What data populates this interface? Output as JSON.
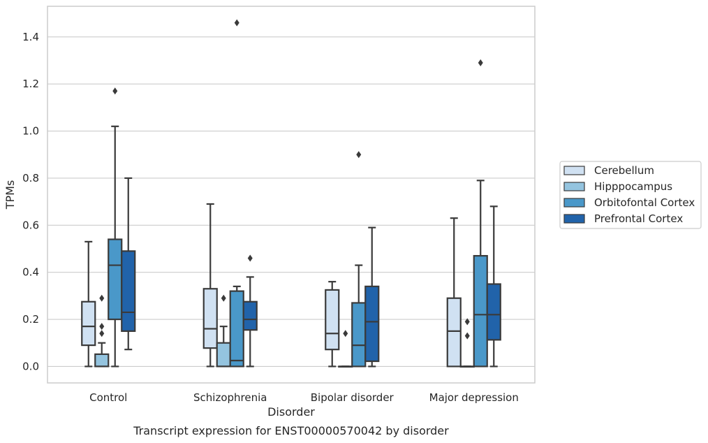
{
  "chart_data": {
    "type": "boxplot",
    "xlabel": "Disorder",
    "ylabel": "TPMs",
    "caption": "Transcript expression for ENST00000570042 by disorder",
    "ylim": [
      -0.07,
      1.53
    ],
    "yticks": [
      "0.0",
      "0.2",
      "0.4",
      "0.6",
      "0.8",
      "1.0",
      "1.2",
      "1.4"
    ],
    "yticks_values": [
      0,
      0.2,
      0.4,
      0.6,
      0.8,
      1.0,
      1.2,
      1.4
    ],
    "grid": "horizontal",
    "legend_position": "right",
    "categories": [
      "Control",
      "Schizophrenia",
      "Bipolar disorder",
      "Major depression"
    ],
    "series": [
      {
        "name": "Cerebellum",
        "color": "#d0e1f2",
        "boxes": [
          {
            "whisker_low": 0.0,
            "q1": 0.09,
            "median": 0.17,
            "q3": 0.275,
            "whisker_high": 0.53,
            "outliers": []
          },
          {
            "whisker_low": 0.0,
            "q1": 0.078,
            "median": 0.16,
            "q3": 0.33,
            "whisker_high": 0.69,
            "outliers": []
          },
          {
            "whisker_low": 0.0,
            "q1": 0.072,
            "median": 0.14,
            "q3": 0.325,
            "whisker_high": 0.36,
            "outliers": []
          },
          {
            "whisker_low": 0.0,
            "q1": 0.0,
            "median": 0.15,
            "q3": 0.29,
            "whisker_high": 0.63,
            "outliers": []
          }
        ]
      },
      {
        "name": "Hipppocampus",
        "color": "#94c4df",
        "boxes": [
          {
            "whisker_low": 0.0,
            "q1": 0.0,
            "median": 0.0,
            "q3": 0.052,
            "whisker_high": 0.1,
            "outliers": [
              0.14,
              0.17,
              0.29
            ]
          },
          {
            "whisker_low": 0.0,
            "q1": 0.0,
            "median": 0.0,
            "q3": 0.1,
            "whisker_high": 0.17,
            "outliers": [
              0.29
            ]
          },
          {
            "whisker_low": 0.0,
            "q1": 0.0,
            "median": 0.0,
            "q3": 0.0,
            "whisker_high": 0.0,
            "outliers": [
              0.14
            ]
          },
          {
            "whisker_low": 0.0,
            "q1": 0.0,
            "median": 0.0,
            "q3": 0.0,
            "whisker_high": 0.0,
            "outliers": [
              0.13,
              0.19
            ]
          }
        ]
      },
      {
        "name": "Orbitofontal Cortex",
        "color": "#4a98c9",
        "boxes": [
          {
            "whisker_low": 0.0,
            "q1": 0.2,
            "median": 0.43,
            "q3": 0.54,
            "whisker_high": 1.02,
            "outliers": [
              1.17
            ]
          },
          {
            "whisker_low": 0.0,
            "q1": 0.0,
            "median": 0.025,
            "q3": 0.32,
            "whisker_high": 0.34,
            "outliers": [
              1.46
            ]
          },
          {
            "whisker_low": 0.0,
            "q1": 0.0,
            "median": 0.09,
            "q3": 0.27,
            "whisker_high": 0.43,
            "outliers": [
              0.9
            ]
          },
          {
            "whisker_low": 0.0,
            "q1": 0.0,
            "median": 0.22,
            "q3": 0.47,
            "whisker_high": 0.79,
            "outliers": [
              1.29
            ]
          }
        ]
      },
      {
        "name": "Prefrontal Cortex",
        "color": "#2163aa",
        "boxes": [
          {
            "whisker_low": 0.072,
            "q1": 0.15,
            "median": 0.23,
            "q3": 0.49,
            "whisker_high": 0.8,
            "outliers": []
          },
          {
            "whisker_low": 0.0,
            "q1": 0.155,
            "median": 0.2,
            "q3": 0.275,
            "whisker_high": 0.38,
            "outliers": [
              0.46
            ]
          },
          {
            "whisker_low": 0.0,
            "q1": 0.022,
            "median": 0.19,
            "q3": 0.34,
            "whisker_high": 0.59,
            "outliers": []
          },
          {
            "whisker_low": 0.0,
            "q1": 0.113,
            "median": 0.22,
            "q3": 0.35,
            "whisker_high": 0.68,
            "outliers": []
          }
        ]
      }
    ]
  }
}
